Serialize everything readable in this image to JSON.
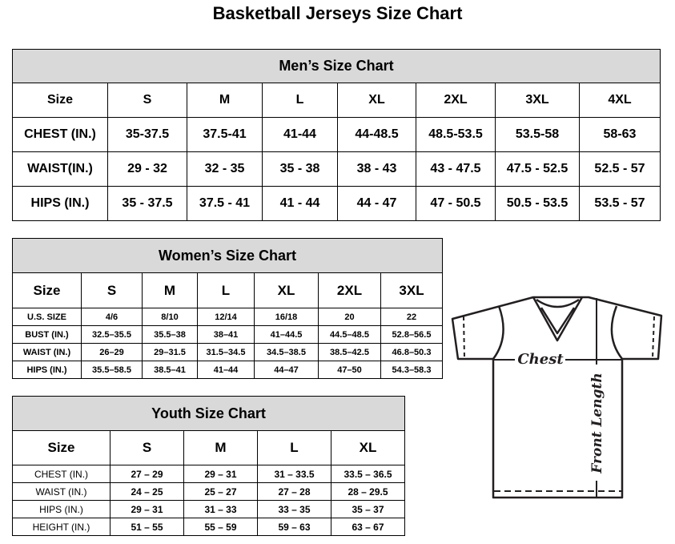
{
  "title": "Basketball Jerseys Size Chart",
  "men": {
    "title": "Men’s Size Chart",
    "header": [
      "Size",
      "S",
      "M",
      "L",
      "XL",
      "2XL",
      "3XL",
      "4XL"
    ],
    "rows": [
      [
        "CHEST (IN.)",
        "35-37.5",
        "37.5-41",
        "41-44",
        "44-48.5",
        "48.5-53.5",
        "53.5-58",
        "58-63"
      ],
      [
        "WAIST(IN.)",
        "29 - 32",
        "32 - 35",
        "35 - 38",
        "38 - 43",
        "43 - 47.5",
        "47.5 - 52.5",
        "52.5 - 57"
      ],
      [
        "HIPS (IN.)",
        "35 - 37.5",
        "37.5 - 41",
        "41 - 44",
        "44 - 47",
        "47 - 50.5",
        "50.5 - 53.5",
        "53.5 - 57"
      ]
    ]
  },
  "women": {
    "title": "Women’s Size Chart",
    "header": [
      "Size",
      "S",
      "M",
      "L",
      "XL",
      "2XL",
      "3XL"
    ],
    "rows": [
      [
        "U.S.  SIZE",
        "4/6",
        "8/10",
        "12/14",
        "16/18",
        "20",
        "22"
      ],
      [
        "BUST  (IN.)",
        "32.5–35.5",
        "35.5–38",
        "38–41",
        "41–44.5",
        "44.5–48.5",
        "52.8–56.5"
      ],
      [
        "WAIST  (IN.)",
        "26–29",
        "29–31.5",
        "31.5–34.5",
        "34.5–38.5",
        "38.5–42.5",
        "46.8–50.3"
      ],
      [
        "HIPS  (IN.)",
        "35.5–58.5",
        "38.5–41",
        "41–44",
        "44–47",
        "47–50",
        "54.3–58.3"
      ]
    ]
  },
  "youth": {
    "title": "Youth Size Chart",
    "header": [
      "Size",
      "S",
      "M",
      "L",
      "XL"
    ],
    "rows": [
      [
        "CHEST  (IN.)",
        "27  –  29",
        "29  –  31",
        "31  –  33.5",
        "33.5  –  36.5"
      ],
      [
        "WAIST  (IN.)",
        "24  –  25",
        "25  –  27",
        "27  –  28",
        "28  –  29.5"
      ],
      [
        "HIPS  (IN.)",
        "29  –  31",
        "31  –  33",
        "33  –  35",
        "35  –  37"
      ],
      [
        "HEIGHT  (IN.)",
        "51  –  55",
        "55  –  59",
        "59  –  63",
        "63  –  67"
      ]
    ]
  },
  "diagram": {
    "chest_label": "Chest",
    "length_label": "Front Length",
    "line_color": "#231f20"
  }
}
